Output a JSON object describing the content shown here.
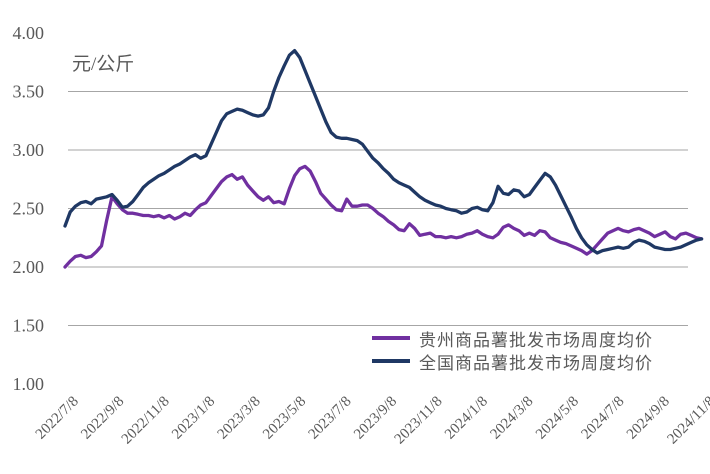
{
  "colors": {
    "background": "#FFFFFF",
    "text": "#595959",
    "gridline": "#A6A6A6",
    "guizhou_line": "#7030A0",
    "national_line": "#1F3864"
  },
  "chart_data": {
    "type": "line",
    "unit": "元/公斤",
    "x_start": "2022/7/8",
    "x_end": "2024/11/8",
    "frequency": "weekly",
    "ylim": [
      1.0,
      4.0
    ],
    "y_tick_labels": [
      "4.00",
      "3.50",
      "3.00",
      "2.50",
      "2.00",
      "1.50",
      "1.00"
    ],
    "gridline_values": [
      3.5,
      3.0,
      2.5,
      2.0,
      1.5
    ],
    "x_tick_labels": [
      "2022/7/8",
      "2022/9/8",
      "2022/11/8",
      "2023/1/8",
      "2023/3/8",
      "2023/5/8",
      "2023/7/8",
      "2023/9/8",
      "2023/11/8",
      "2024/1/8",
      "2024/3/8",
      "2024/5/8",
      "2024/7/8",
      "2024/9/8",
      "2024/11/8"
    ],
    "legend_position": "bottom-right-inside",
    "grid": "horizontal-only",
    "series": [
      {
        "name": "贵州商品薯批发市场周度均价",
        "color": "#7030A0",
        "values": [
          2.0,
          2.05,
          2.09,
          2.1,
          2.08,
          2.09,
          2.13,
          2.18,
          2.4,
          2.6,
          2.54,
          2.49,
          2.46,
          2.46,
          2.45,
          2.44,
          2.44,
          2.43,
          2.44,
          2.42,
          2.44,
          2.41,
          2.43,
          2.46,
          2.44,
          2.49,
          2.53,
          2.55,
          2.61,
          2.67,
          2.73,
          2.77,
          2.79,
          2.75,
          2.77,
          2.7,
          2.65,
          2.6,
          2.57,
          2.6,
          2.55,
          2.56,
          2.54,
          2.67,
          2.78,
          2.84,
          2.86,
          2.82,
          2.73,
          2.63,
          2.58,
          2.53,
          2.49,
          2.48,
          2.58,
          2.52,
          2.52,
          2.53,
          2.53,
          2.5,
          2.46,
          2.43,
          2.39,
          2.36,
          2.32,
          2.31,
          2.37,
          2.33,
          2.27,
          2.28,
          2.29,
          2.26,
          2.26,
          2.25,
          2.26,
          2.25,
          2.26,
          2.28,
          2.29,
          2.31,
          2.28,
          2.26,
          2.25,
          2.28,
          2.34,
          2.36,
          2.33,
          2.31,
          2.27,
          2.29,
          2.27,
          2.31,
          2.3,
          2.25,
          2.23,
          2.21,
          2.2,
          2.18,
          2.16,
          2.14,
          2.11,
          2.14,
          2.19,
          2.24,
          2.29,
          2.31,
          2.33,
          2.31,
          2.3,
          2.32,
          2.33,
          2.31,
          2.29,
          2.26,
          2.28,
          2.3,
          2.26,
          2.24,
          2.28,
          2.29,
          2.27,
          2.25,
          2.24
        ]
      },
      {
        "name": "全国商品薯批发市场周度均价",
        "color": "#1F3864",
        "values": [
          2.35,
          2.47,
          2.52,
          2.55,
          2.56,
          2.54,
          2.58,
          2.59,
          2.6,
          2.62,
          2.57,
          2.51,
          2.52,
          2.56,
          2.62,
          2.68,
          2.72,
          2.75,
          2.78,
          2.8,
          2.83,
          2.86,
          2.88,
          2.91,
          2.94,
          2.96,
          2.93,
          2.95,
          3.05,
          3.15,
          3.25,
          3.31,
          3.33,
          3.35,
          3.34,
          3.32,
          3.3,
          3.29,
          3.3,
          3.36,
          3.5,
          3.62,
          3.72,
          3.81,
          3.85,
          3.79,
          3.68,
          3.57,
          3.46,
          3.35,
          3.24,
          3.15,
          3.11,
          3.1,
          3.1,
          3.09,
          3.08,
          3.05,
          2.99,
          2.93,
          2.89,
          2.84,
          2.8,
          2.75,
          2.72,
          2.7,
          2.68,
          2.64,
          2.6,
          2.57,
          2.55,
          2.53,
          2.52,
          2.5,
          2.49,
          2.48,
          2.46,
          2.47,
          2.5,
          2.51,
          2.49,
          2.48,
          2.55,
          2.69,
          2.63,
          2.62,
          2.66,
          2.65,
          2.6,
          2.62,
          2.68,
          2.74,
          2.8,
          2.77,
          2.7,
          2.61,
          2.52,
          2.43,
          2.33,
          2.25,
          2.19,
          2.15,
          2.12,
          2.14,
          2.15,
          2.16,
          2.17,
          2.16,
          2.17,
          2.21,
          2.23,
          2.22,
          2.2,
          2.17,
          2.16,
          2.15,
          2.15,
          2.16,
          2.17,
          2.19,
          2.21,
          2.23,
          2.24
        ]
      }
    ]
  }
}
